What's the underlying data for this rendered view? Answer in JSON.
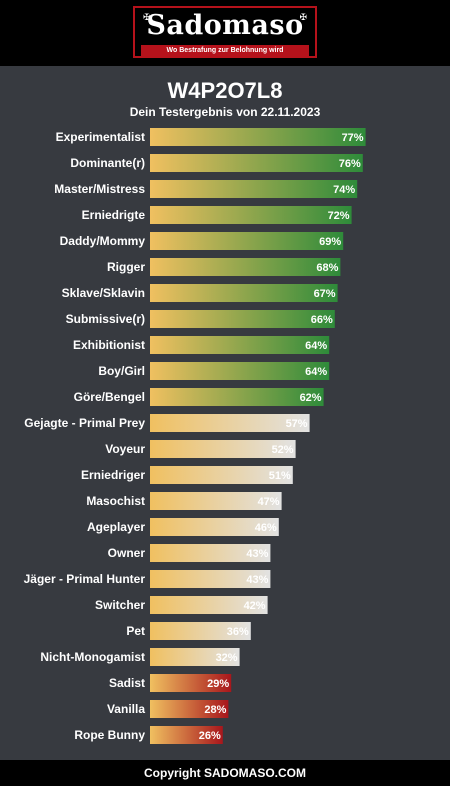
{
  "header": {
    "logo_text": "Sadomaso",
    "logo_tagline": "Wo Bestrafung zur Belohnung wird"
  },
  "result": {
    "title": "W4P2O7L8",
    "subtitle": "Dein Testergebnis von 22.11.2023"
  },
  "footer": {
    "text": "Copyright SADOMASO.COM"
  },
  "colors": {
    "background": "#373a40",
    "bar_start": "#f0c060",
    "high_end": "#2e8b3a",
    "mid_end": "#e2e2e2",
    "low_end": "#a8161c"
  },
  "chart_data": {
    "type": "bar",
    "orientation": "horizontal",
    "value_suffix": "%",
    "xlim": [
      0,
      100
    ],
    "grid": false,
    "categories": [
      "Experimentalist",
      "Dominante(r)",
      "Master/Mistress",
      "Erniedrigte",
      "Daddy/Mommy",
      "Rigger",
      "Sklave/Sklavin",
      "Submissive(r)",
      "Exhibitionist",
      "Boy/Girl",
      "Göre/Bengel",
      "Gejagte - Primal Prey",
      "Voyeur",
      "Erniedriger",
      "Masochist",
      "Ageplayer",
      "Owner",
      "Jäger - Primal Hunter",
      "Switcher",
      "Pet",
      "Nicht-Monogamist",
      "Sadist",
      "Vanilla",
      "Rope Bunny"
    ],
    "values": [
      77,
      76,
      74,
      72,
      69,
      68,
      67,
      66,
      64,
      64,
      62,
      57,
      52,
      51,
      47,
      46,
      43,
      43,
      42,
      36,
      32,
      29,
      28,
      26
    ]
  }
}
